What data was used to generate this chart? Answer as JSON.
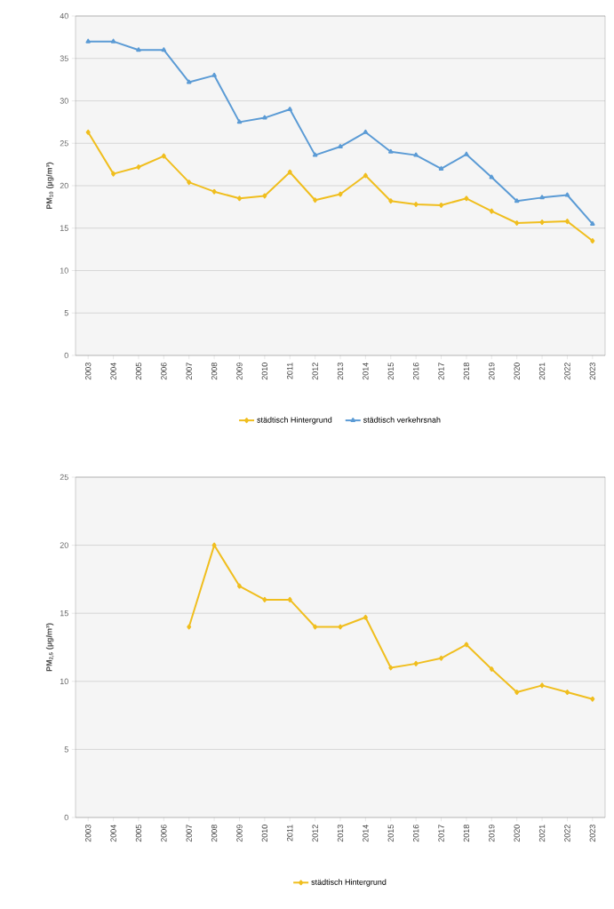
{
  "chart_data": [
    {
      "type": "line",
      "ylabel": "PM$_{10}$ (µg/m³)",
      "categories": [
        "2003",
        "2004",
        "2005",
        "2006",
        "2007",
        "2008",
        "2009",
        "2010",
        "2011",
        "2012",
        "2013",
        "2014",
        "2015",
        "2016",
        "2017",
        "2018",
        "2019",
        "2020",
        "2021",
        "2022",
        "2023"
      ],
      "series": [
        {
          "name": "städtisch Hintergrund",
          "color": "#f0be1e",
          "marker": "diamond",
          "values": [
            26.3,
            21.4,
            22.2,
            23.5,
            20.4,
            19.3,
            18.5,
            18.8,
            21.6,
            18.3,
            19,
            21.2,
            18.2,
            17.8,
            17.7,
            18.5,
            17,
            15.6,
            15.7,
            15.8,
            13.5
          ]
        },
        {
          "name": "städtisch verkehrsnah",
          "color": "#5b9bd5",
          "marker": "triangle",
          "values": [
            37,
            37,
            36,
            36,
            32.2,
            33,
            27.5,
            28,
            29,
            23.6,
            24.6,
            26.3,
            24,
            23.6,
            22,
            23.7,
            21,
            18.2,
            18.6,
            18.9,
            15.5
          ]
        }
      ],
      "ylim": [
        0,
        40
      ],
      "yticks": [
        0,
        5,
        10,
        15,
        20,
        25,
        30,
        35,
        40
      ],
      "grid": "y",
      "legend": "bottom"
    },
    {
      "type": "line",
      "ylabel": "PM$_{2,5}$ (µg/m³)",
      "categories": [
        "2003",
        "2004",
        "2005",
        "2006",
        "2007",
        "2008",
        "2009",
        "2010",
        "2011",
        "2012",
        "2013",
        "2014",
        "2015",
        "2016",
        "2017",
        "2018",
        "2019",
        "2020",
        "2021",
        "2022",
        "2023"
      ],
      "series": [
        {
          "name": "städtisch Hintergrund",
          "color": "#f0be1e",
          "marker": "diamond",
          "values": [
            null,
            null,
            null,
            null,
            14,
            20,
            17,
            16,
            16,
            14,
            14,
            14.7,
            11,
            11.3,
            11.7,
            12.7,
            10.9,
            9.2,
            9.7,
            9.2,
            8.7
          ]
        }
      ],
      "ylim": [
        0,
        25
      ],
      "yticks": [
        0,
        5,
        10,
        15,
        20,
        25
      ],
      "grid": "y",
      "legend": "bottom"
    }
  ]
}
